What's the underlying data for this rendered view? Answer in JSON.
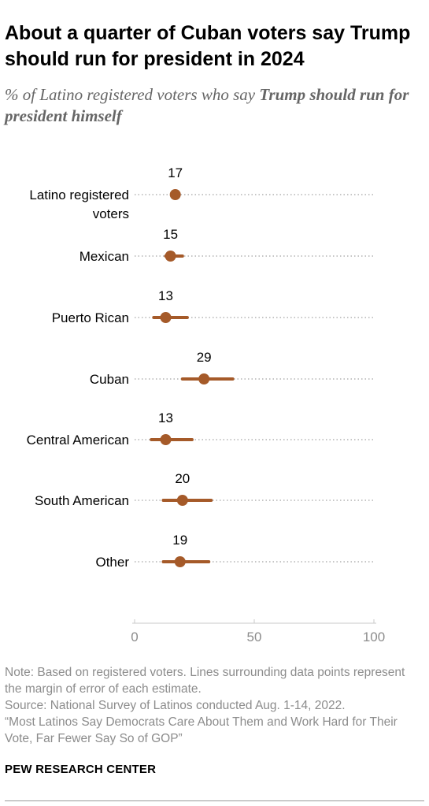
{
  "header": {
    "title": "About a quarter of Cuban voters say Trump should run for president in 2024",
    "subtitle_prefix": "% of Latino registered voters who say ",
    "subtitle_highlight": "Trump should run for president himself"
  },
  "chart_data": {
    "type": "dot-with-error-bars",
    "categories": [
      "Latino registered voters",
      "Mexican",
      "Puerto Rican",
      "Cuban",
      "Central American",
      "South American",
      "Other"
    ],
    "values": [
      17,
      15,
      13,
      29,
      13,
      20,
      19
    ],
    "value_labels": [
      "17",
      "15",
      "13",
      "29",
      "13",
      "20",
      "19"
    ],
    "error_low": [
      16,
      13,
      8,
      20,
      7,
      12,
      12
    ],
    "error_high": [
      18,
      20,
      22,
      41,
      24,
      32,
      31
    ],
    "xlim": [
      0,
      100
    ],
    "x_ticks": [
      0,
      50,
      100
    ],
    "x_tick_labels": [
      "0",
      "50",
      "100"
    ],
    "grid": "dotted guide line per row",
    "colors": {
      "marker": "#a55a29",
      "guide": "#b3b3b3",
      "axis": "#c9c9c9"
    }
  },
  "footer": {
    "note": "Note: Based on registered voters.  Lines surrounding data points represent the margin of error of each estimate.",
    "source": "Source: National Survey of Latinos conducted Aug. 1-14, 2022.",
    "report": "“Most Latinos Say Democrats Care About Them and Work Hard for Their Vote, Far Fewer Say So of GOP”",
    "org": "PEW RESEARCH CENTER"
  }
}
